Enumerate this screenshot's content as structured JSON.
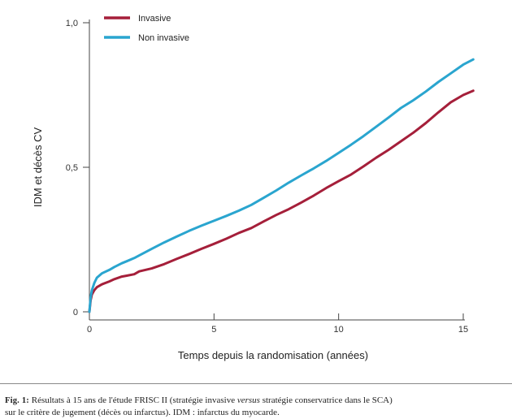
{
  "chart_data": {
    "type": "line",
    "xlabel": "Temps depuis la randomisation (années)",
    "ylabel": "IDM et décès CV",
    "xlim": [
      0,
      15
    ],
    "ylim": [
      0,
      1.0
    ],
    "x_ticks": [
      {
        "value": 0,
        "label": "0"
      },
      {
        "value": 5,
        "label": "5"
      },
      {
        "value": 10,
        "label": "10"
      },
      {
        "value": 15,
        "label": "15"
      }
    ],
    "y_ticks": [
      {
        "value": 0,
        "label": "0"
      },
      {
        "value": 0.5,
        "label": "0,5"
      },
      {
        "value": 1.0,
        "label": "1,0"
      }
    ],
    "grid": false,
    "legend_position": "top-left",
    "series": [
      {
        "name": "Invasive",
        "color": "#a51f3a",
        "x": [
          0,
          0.05,
          0.1,
          0.2,
          0.3,
          0.5,
          0.8,
          1.0,
          1.3,
          1.5,
          1.8,
          2.0,
          2.5,
          3.0,
          3.5,
          4.0,
          4.5,
          5.0,
          5.5,
          6.0,
          6.5,
          7.0,
          7.5,
          8.0,
          8.5,
          9.0,
          9.5,
          10.0,
          10.5,
          11.0,
          11.5,
          12.0,
          12.5,
          13.0,
          13.5,
          14.0,
          14.5,
          15.0,
          15.4
        ],
        "y": [
          0,
          0.04,
          0.06,
          0.075,
          0.085,
          0.095,
          0.105,
          0.113,
          0.122,
          0.125,
          0.13,
          0.14,
          0.15,
          0.165,
          0.183,
          0.2,
          0.218,
          0.235,
          0.253,
          0.273,
          0.29,
          0.313,
          0.335,
          0.355,
          0.378,
          0.402,
          0.428,
          0.452,
          0.475,
          0.503,
          0.533,
          0.56,
          0.59,
          0.62,
          0.653,
          0.69,
          0.725,
          0.75,
          0.765
        ]
      },
      {
        "name": "Non invasive",
        "color": "#2aa5cf",
        "x": [
          0,
          0.05,
          0.1,
          0.2,
          0.3,
          0.5,
          0.8,
          1.0,
          1.3,
          1.5,
          1.8,
          2.0,
          2.5,
          3.0,
          3.5,
          4.0,
          4.5,
          5.0,
          5.5,
          6.0,
          6.5,
          7.0,
          7.5,
          8.0,
          8.5,
          9.0,
          9.5,
          10.0,
          10.5,
          11.0,
          11.5,
          12.0,
          12.5,
          13.0,
          13.5,
          14.0,
          14.5,
          15.0,
          15.4
        ],
        "y": [
          0,
          0.05,
          0.075,
          0.1,
          0.118,
          0.133,
          0.145,
          0.155,
          0.168,
          0.175,
          0.186,
          0.195,
          0.218,
          0.24,
          0.26,
          0.28,
          0.298,
          0.315,
          0.332,
          0.35,
          0.37,
          0.395,
          0.42,
          0.447,
          0.472,
          0.496,
          0.522,
          0.55,
          0.578,
          0.608,
          0.64,
          0.672,
          0.705,
          0.732,
          0.762,
          0.795,
          0.825,
          0.855,
          0.873
        ]
      }
    ]
  },
  "caption": {
    "prefix": "Fig. 1:",
    "line1_a": " Résultats à 15 ans de l'étude FRISC II (stratégie invasive ",
    "line1_em": "versus",
    "line1_b": " stratégie conservatrice dans le SCA)",
    "line2": "sur le critère de jugement (décès ou infarctus). IDM : infarctus du myocarde."
  }
}
